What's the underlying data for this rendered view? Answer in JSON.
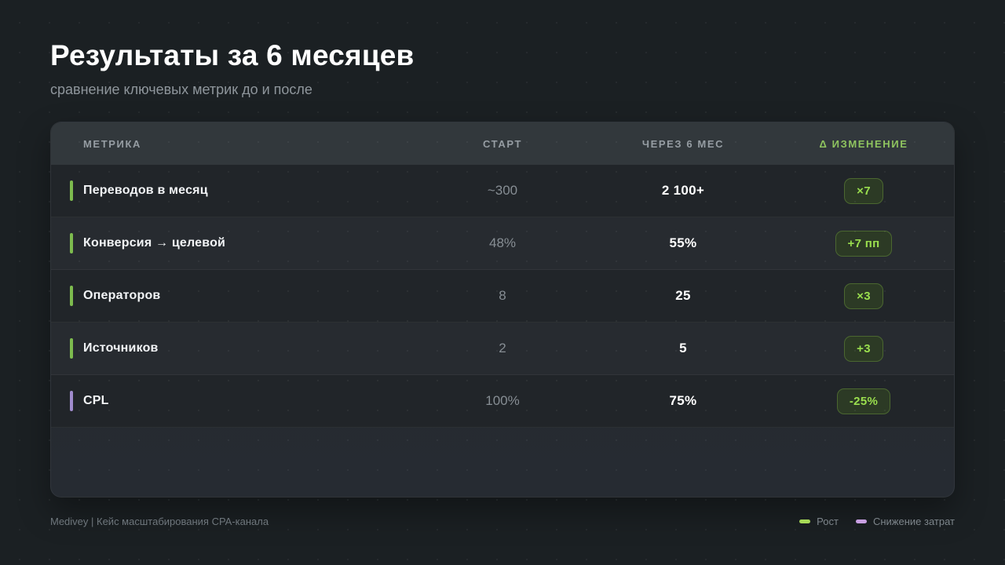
{
  "slide": {
    "title": "Результаты за 6 месяцев",
    "subtitle": "сравнение ключевых метрик до и после"
  },
  "table": {
    "columns": [
      "МЕТРИКА",
      "СТАРТ",
      "ЧЕРЕЗ 6 МЕС",
      "Δ ИЗМЕНЕНИЕ"
    ],
    "rows": [
      {
        "metric": "Переводов в месяц",
        "start": "~300",
        "after": "2 100+",
        "change": "×7",
        "accent": "growth"
      },
      {
        "metric": "Конверсия → целевой",
        "start": "48%",
        "after": "55%",
        "change": "+7 пп",
        "accent": "growth"
      },
      {
        "metric": "Операторов",
        "start": "8",
        "after": "25",
        "change": "×3",
        "accent": "growth"
      },
      {
        "metric": "Источников",
        "start": "2",
        "after": "5",
        "change": "+3",
        "accent": "growth"
      },
      {
        "metric": "CPL",
        "start": "100%",
        "after": "75%",
        "change": "-25%",
        "accent": "cost-reduction"
      }
    ]
  },
  "footer": {
    "caption": "Medivey | Кейс масштабирования CPA-канала",
    "legend": [
      {
        "label": "Рост",
        "color": "#a6d957"
      },
      {
        "label": "Снижение затрат",
        "color": "#c89fe2"
      }
    ]
  },
  "colors": {
    "background": "#1b2023",
    "card_header": "#32383c",
    "growth_accent": "#7dbb4e",
    "cost_reduction_accent": "#a08bcd",
    "badge_background": "#2c3a25",
    "badge_text": "#9ade4e",
    "change_header_text": "#8fc45f"
  }
}
